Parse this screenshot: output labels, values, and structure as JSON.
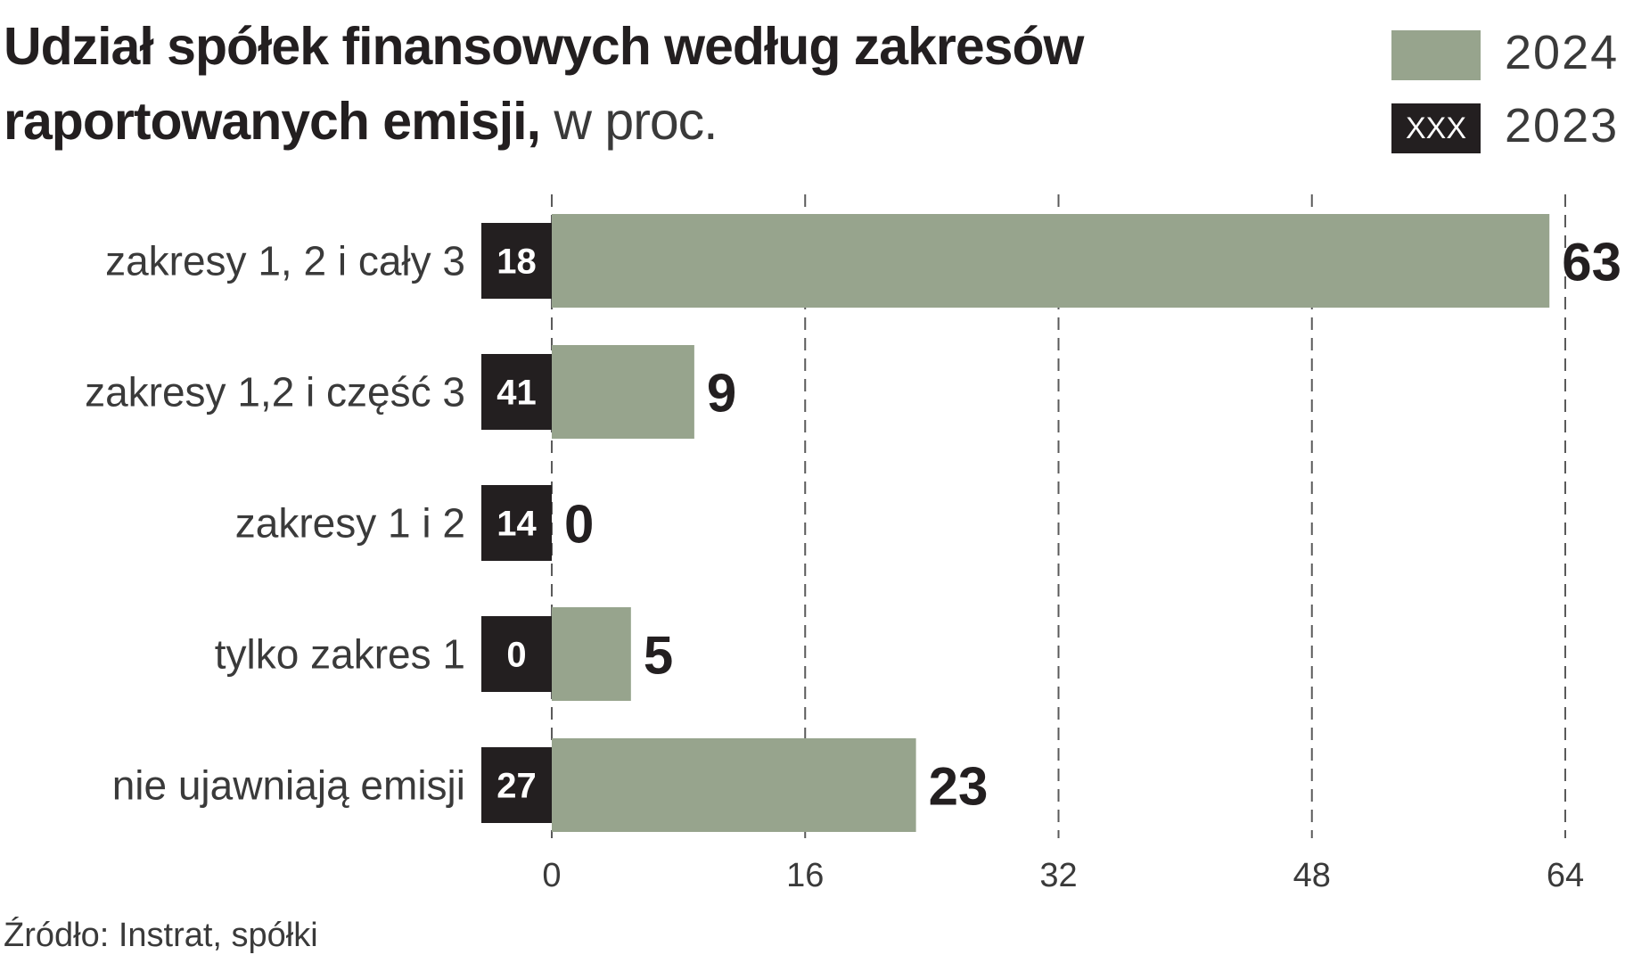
{
  "title": {
    "bold": "Udział spółek finansowych według zakresów raportowanych emisji,",
    "light": "w proc."
  },
  "legend": [
    {
      "year": "2024",
      "swatch_text": "",
      "color": "#97a48d"
    },
    {
      "year": "2023",
      "swatch_text": "XXX",
      "color": "#231f20"
    }
  ],
  "source": "Źródło: Instrat, spółki",
  "chart_data": {
    "type": "bar",
    "orientation": "horizontal",
    "categories": [
      "zakresy 1, 2 i cały 3",
      "zakresy 1,2 i część 3",
      "zakresy 1 i 2",
      "tylko zakres 1",
      "nie ujawniają emisji"
    ],
    "series": [
      {
        "name": "2024",
        "values": [
          63,
          9,
          0,
          5,
          23
        ],
        "color": "#97a48d"
      },
      {
        "name": "2023",
        "values": [
          18,
          41,
          14,
          0,
          27
        ],
        "color": "#231f20"
      }
    ],
    "xlim": [
      0,
      64
    ],
    "xticks": [
      0,
      16,
      32,
      48,
      64
    ],
    "grid": "vertical dashed",
    "legend": "top-right"
  }
}
